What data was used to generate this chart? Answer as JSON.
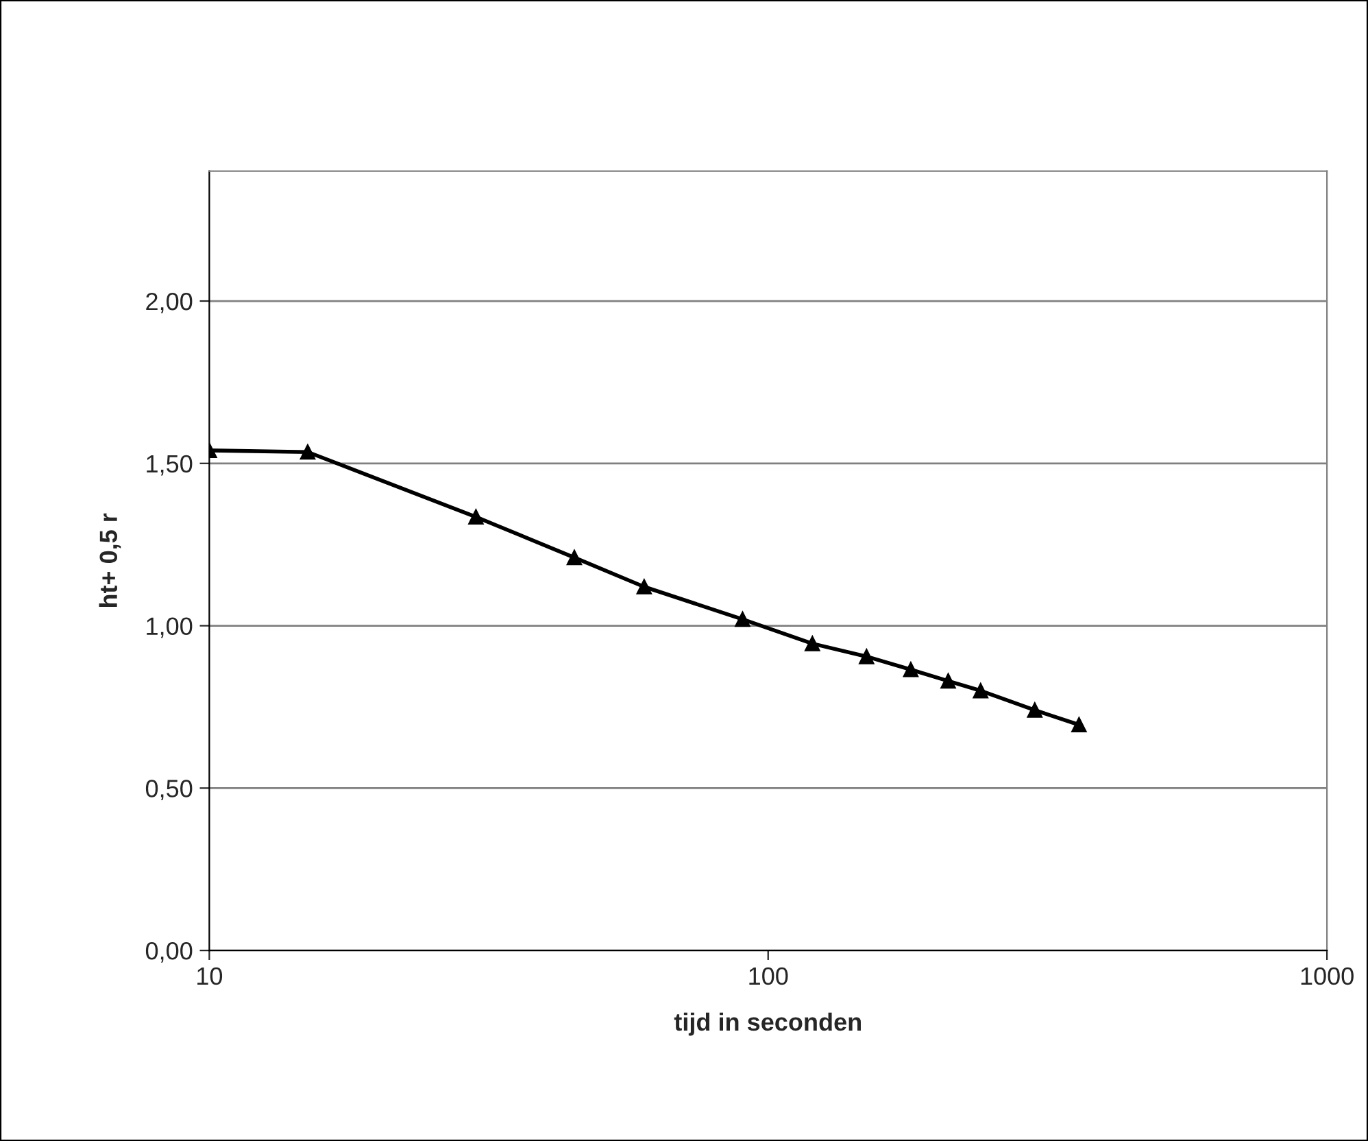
{
  "chart_data": {
    "type": "line",
    "xlabel": "tijd in seconden",
    "ylabel": "ht+ 0,5 r",
    "log": "x",
    "x": [
      10,
      15,
      30,
      45,
      60,
      90,
      120,
      150,
      180,
      210,
      240,
      300,
      360
    ],
    "series": [
      {
        "color": "#000000",
        "values": [
          1.54,
          1.535,
          1.335,
          1.21,
          1.12,
          1.02,
          0.945,
          0.905,
          0.865,
          0.83,
          0.8,
          0.74,
          0.695
        ]
      }
    ],
    "xlim": [
      10,
      1000
    ],
    "xticks": [
      10,
      100,
      1000
    ],
    "ylim": [
      0,
      2.4
    ],
    "yticks": [
      {
        "value": 0,
        "label": "0,00"
      },
      {
        "value": 0.5,
        "label": "0,50"
      },
      {
        "value": 1,
        "label": "1,00"
      },
      {
        "value": 1.5,
        "label": "1,50"
      },
      {
        "value": 2,
        "label": "2,00"
      }
    ],
    "grid": "y",
    "marker": "triangle",
    "line_style": "solid",
    "legend": false
  }
}
